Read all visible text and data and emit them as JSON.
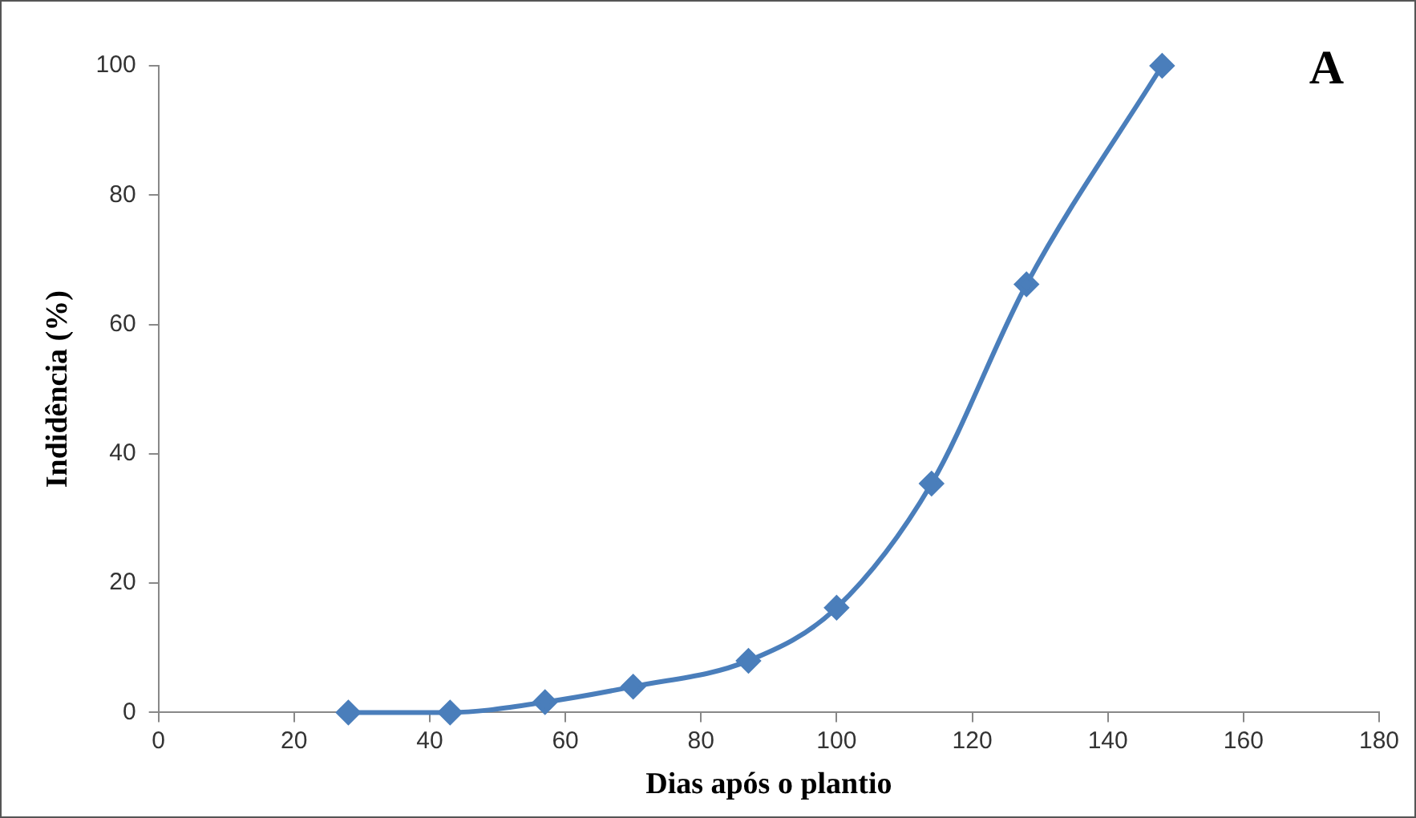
{
  "chart_data": {
    "type": "line",
    "xlabel": "Dias após o plantio",
    "ylabel": "Indidência (%)",
    "annotations": [
      "A"
    ],
    "x": [
      28,
      43,
      57,
      70,
      87,
      100,
      114,
      128,
      148
    ],
    "series": [
      {
        "color": "#4a7ebb",
        "values": [
          0,
          0,
          1.6,
          4,
          8,
          16.2,
          35.4,
          66.2,
          100
        ]
      }
    ],
    "xlim": [
      0,
      180
    ],
    "xticks": [
      0,
      20,
      40,
      60,
      80,
      100,
      120,
      140,
      160,
      180
    ],
    "ylim": [
      0,
      100
    ],
    "yticks": [
      0,
      20,
      40,
      60,
      80,
      100
    ],
    "grid": false,
    "legend": false,
    "marker": "diamond",
    "line_style": "solid"
  }
}
